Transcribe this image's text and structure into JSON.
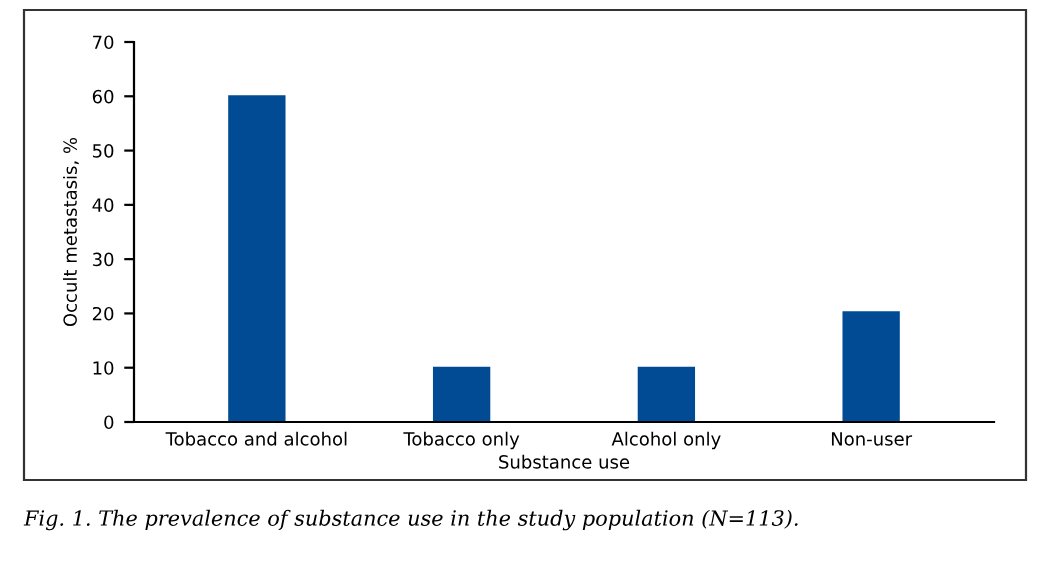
{
  "chart_data": {
    "type": "bar",
    "xlabel": "Substance use",
    "ylabel": "Occult metastasis, %",
    "categories": [
      "Tobacco and alcohol",
      "Tobacco only",
      "Alcohol only",
      "Non-user"
    ],
    "values": [
      60.2,
      10.2,
      10.2,
      20.4
    ],
    "color": "#004b93",
    "ylim": [
      0,
      70
    ],
    "yticks": [
      0,
      10,
      20,
      30,
      40,
      50,
      60,
      70
    ],
    "grid": false,
    "legend": false,
    "annotations": [
      "Fig. 1. The prevalence of substance use in the study population (N=113)."
    ]
  }
}
